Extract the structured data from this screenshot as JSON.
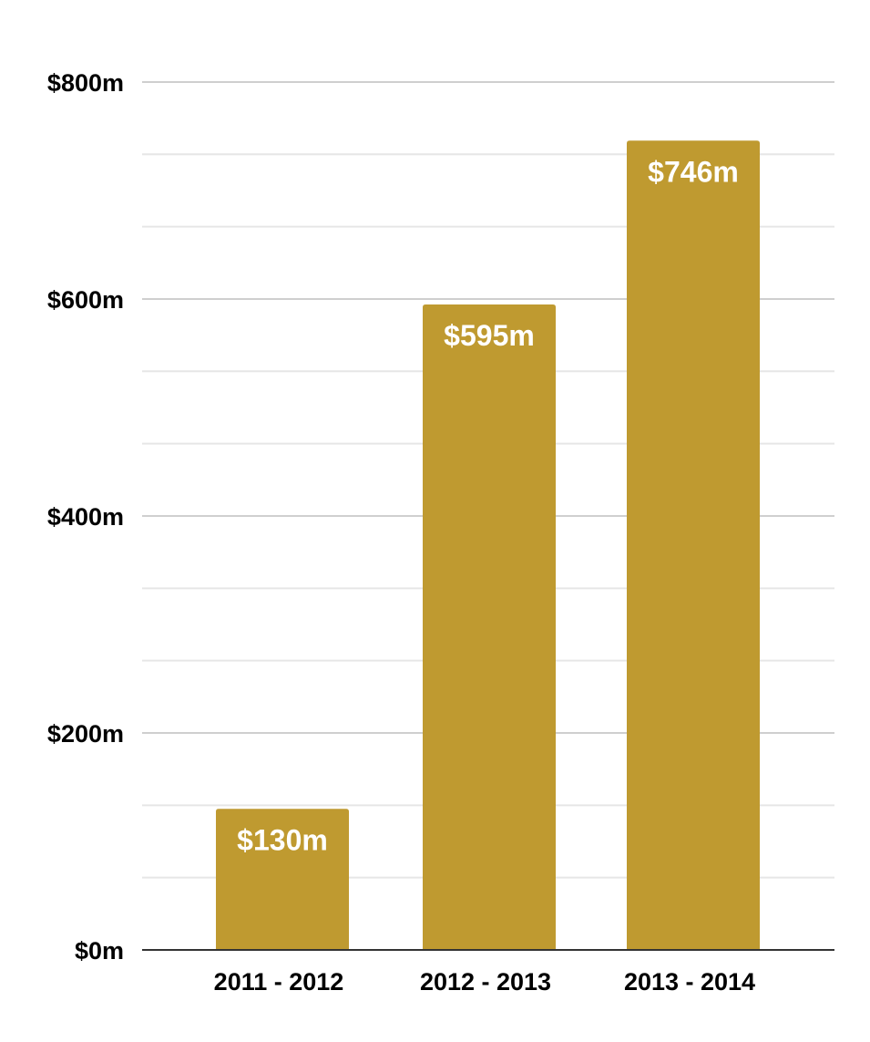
{
  "chart_data": {
    "type": "bar",
    "title": "",
    "xlabel": "",
    "ylabel": "",
    "categories": [
      "2011 - 2012",
      "2012 - 2013",
      "2013 - 2014"
    ],
    "values": [
      130,
      595,
      746
    ],
    "data_labels": [
      "$130m",
      "$595m",
      "$746m"
    ],
    "ylim": [
      0,
      800
    ],
    "y_ticks": [
      0,
      200,
      400,
      600,
      800
    ],
    "y_tick_labels": [
      "$0m",
      "$200m",
      "$400m",
      "$600m",
      "$800m"
    ],
    "minor_gridline_step": 66.67,
    "grid": true,
    "legend": "none",
    "bar_color": "#bf9a30",
    "data_label_color": "#ffffff"
  }
}
